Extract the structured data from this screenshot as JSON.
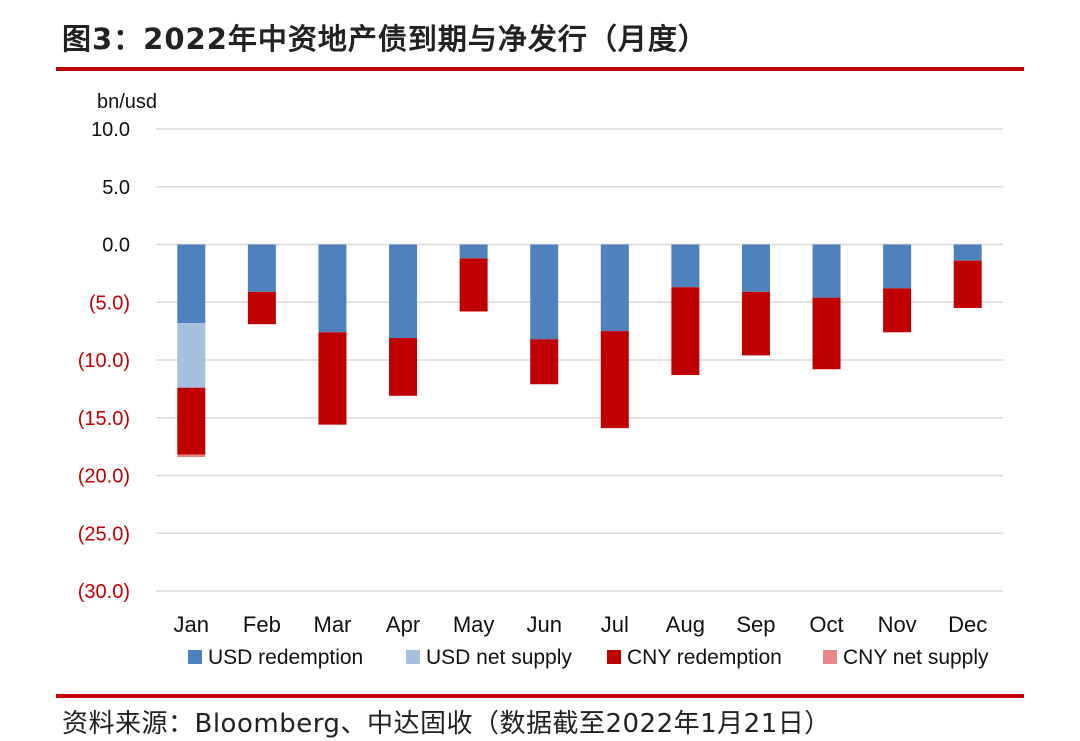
{
  "title": "图3：2022年中资地产债到期与净发行（月度）",
  "source": "资料来源：Bloomberg、中达固收（数据截至2022年1月21日）",
  "colors": {
    "usd_redemption": "#4f81bd",
    "usd_net_supply": "#a7c0de",
    "cny_redemption": "#c00000",
    "cny_net_supply": "#e6878a",
    "negative_tick": "#c00000",
    "positive_tick": "#111111",
    "rule": "#c00000",
    "grid": "#d9d9d9"
  },
  "chart_data": {
    "type": "bar",
    "stacked": true,
    "ylabel": "bn/usd",
    "ylim": [
      -30,
      10
    ],
    "yticks": [
      10,
      5,
      0,
      -5,
      -10,
      -15,
      -20,
      -25,
      -30
    ],
    "ytick_labels": [
      "10.0",
      "5.0",
      "0.0",
      "(5.0)",
      "(10.0)",
      "(15.0)",
      "(20.0)",
      "(25.0)",
      "(30.0)"
    ],
    "grid": true,
    "legend_position": "bottom",
    "categories": [
      "Jan",
      "Feb",
      "Mar",
      "Apr",
      "May",
      "Jun",
      "Jul",
      "Aug",
      "Sep",
      "Oct",
      "Nov",
      "Dec"
    ],
    "series": [
      {
        "name": "USD redemption",
        "color_key": "usd_redemption",
        "values": [
          -6.8,
          -4.1,
          -7.6,
          -8.1,
          -1.2,
          -8.2,
          -7.5,
          -3.7,
          -4.1,
          -4.6,
          -3.8,
          -1.4
        ]
      },
      {
        "name": "USD net supply",
        "color_key": "usd_net_supply",
        "values": [
          -5.6,
          0,
          0,
          0,
          0,
          0,
          0,
          0,
          0,
          0,
          0,
          0
        ]
      },
      {
        "name": "CNY redemption",
        "color_key": "cny_redemption",
        "values": [
          -5.8,
          -2.8,
          -8.0,
          -5.0,
          -4.6,
          -3.9,
          -8.4,
          -7.6,
          -5.5,
          -6.2,
          -3.8,
          -4.1
        ]
      },
      {
        "name": "CNY net supply",
        "color_key": "cny_net_supply",
        "values": [
          -0.2,
          0,
          0,
          0,
          0,
          0,
          0,
          0,
          0,
          0,
          0,
          0
        ]
      }
    ]
  }
}
